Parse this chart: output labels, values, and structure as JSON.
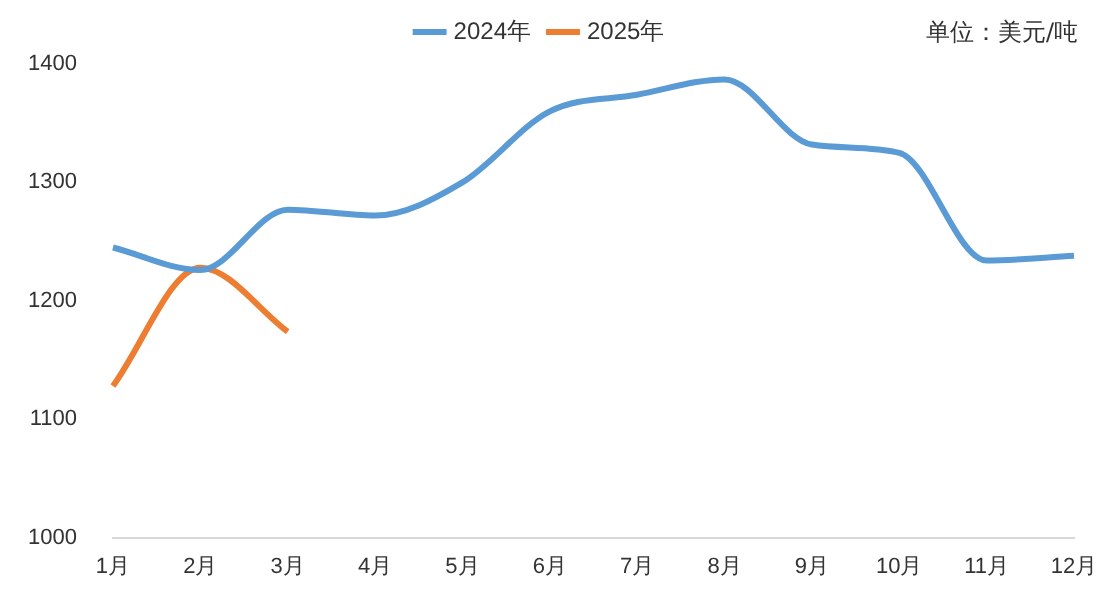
{
  "chart_data": {
    "type": "line",
    "categories": [
      "1月",
      "2月",
      "3月",
      "4月",
      "5月",
      "6月",
      "7月",
      "8月",
      "9月",
      "10月",
      "11月",
      "12月"
    ],
    "series": [
      {
        "name": "2024年",
        "color": "#5b9bd5",
        "values": [
          1245,
          1226,
          1277,
          1272,
          1300,
          1360,
          1374,
          1387,
          1332,
          1325,
          1234,
          1238
        ]
      },
      {
        "name": "2025年",
        "color": "#ed7d31",
        "values": [
          1128,
          1228,
          1174,
          null,
          null,
          null,
          null,
          null,
          null,
          null,
          null,
          null
        ]
      }
    ],
    "ylim": [
      1000,
      1400
    ],
    "yticks": [
      1000,
      1100,
      1200,
      1300,
      1400
    ],
    "grid": false,
    "legend": "top",
    "marker": "none",
    "annotations": [
      "单位：美元/吨"
    ]
  }
}
